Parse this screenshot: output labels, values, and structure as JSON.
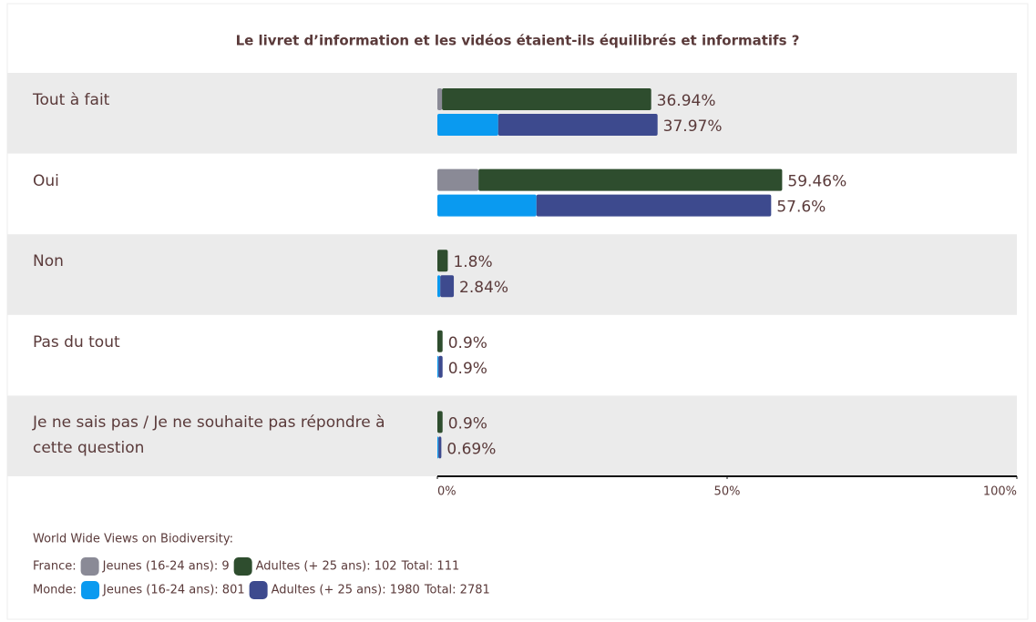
{
  "chart_data": {
    "type": "grouped-stacked-barh",
    "title": "Le livret d’information et les vidéos étaient-ils équilibrés et informatifs ?",
    "categories": [
      "Tout à fait",
      "Oui",
      "Non",
      "Pas du tout",
      "Je ne sais pas / Je ne souhaite pas répondre à cette question"
    ],
    "groups": [
      {
        "name": "France:",
        "total": "Total: 111",
        "series": [
          {
            "name": "Jeunes (16-24 ans): 9",
            "color": "#8a8a96",
            "values": [
              0.8,
              7.1,
              0,
              0,
              0
            ]
          },
          {
            "name": "Adultes (+ 25 ans): 102",
            "color": "#2e4d2e",
            "values": [
              36.1,
              52.4,
              1.8,
              0.9,
              0.9
            ]
          }
        ],
        "total_labels": [
          "36.94%",
          "59.46%",
          "1.8%",
          "0.9%",
          "0.9%"
        ]
      },
      {
        "name": "Monde:",
        "total": "Total: 2781",
        "series": [
          {
            "name": "Jeunes (16-24 ans): 801",
            "color": "#0a9af0",
            "values": [
              10.5,
              17.1,
              0.5,
              0.2,
              0.2
            ]
          },
          {
            "name": "Adultes (+ 25 ans): 1980",
            "color": "#3d4a8e",
            "values": [
              27.5,
              40.5,
              2.34,
              0.7,
              0.49
            ]
          }
        ],
        "total_labels": [
          "37.97%",
          "57.6%",
          "2.84%",
          "0.9%",
          "0.69%"
        ]
      }
    ],
    "legend_title": "World Wide Views on Biodiversity:",
    "xlim": [
      0,
      100
    ],
    "xticks": [
      {
        "value": 0,
        "label": "0%"
      },
      {
        "value": 50,
        "label": "50%"
      },
      {
        "value": 100,
        "label": "100%"
      }
    ]
  }
}
